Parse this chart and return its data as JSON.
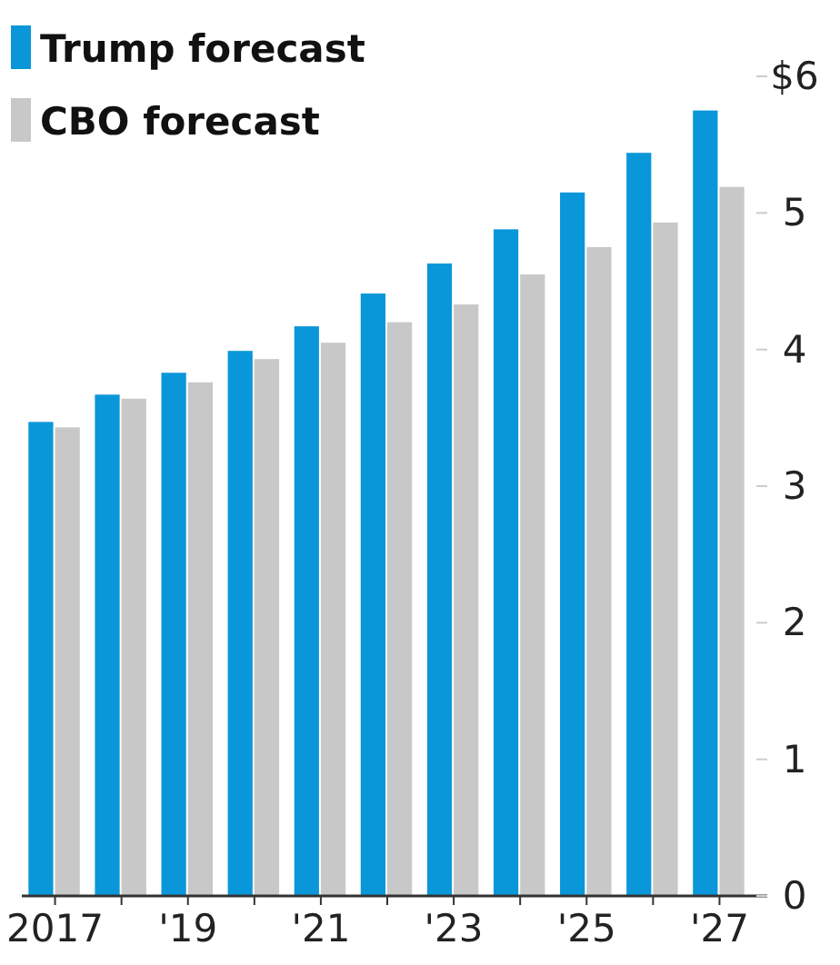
{
  "chart_data": {
    "type": "bar",
    "categories": [
      "2017",
      null,
      "'19",
      null,
      "'21",
      null,
      "'23",
      null,
      "'25",
      null,
      "'27"
    ],
    "series": [
      {
        "name": "Trump forecast",
        "color": "#0a97d9",
        "values": [
          3.47,
          3.67,
          3.83,
          3.99,
          4.17,
          4.41,
          4.63,
          4.88,
          5.15,
          5.44,
          5.75
        ]
      },
      {
        "name": "CBO forecast",
        "color": "#c8c8c8",
        "values": [
          3.43,
          3.64,
          3.76,
          3.93,
          4.05,
          4.2,
          4.33,
          4.55,
          4.75,
          4.93,
          5.19
        ]
      }
    ],
    "ylim": [
      0,
      6
    ],
    "yticks": [
      {
        "value": 6,
        "label": "$6"
      },
      5,
      4,
      3,
      2,
      1,
      0
    ],
    "legend": "top left",
    "grid": false
  }
}
